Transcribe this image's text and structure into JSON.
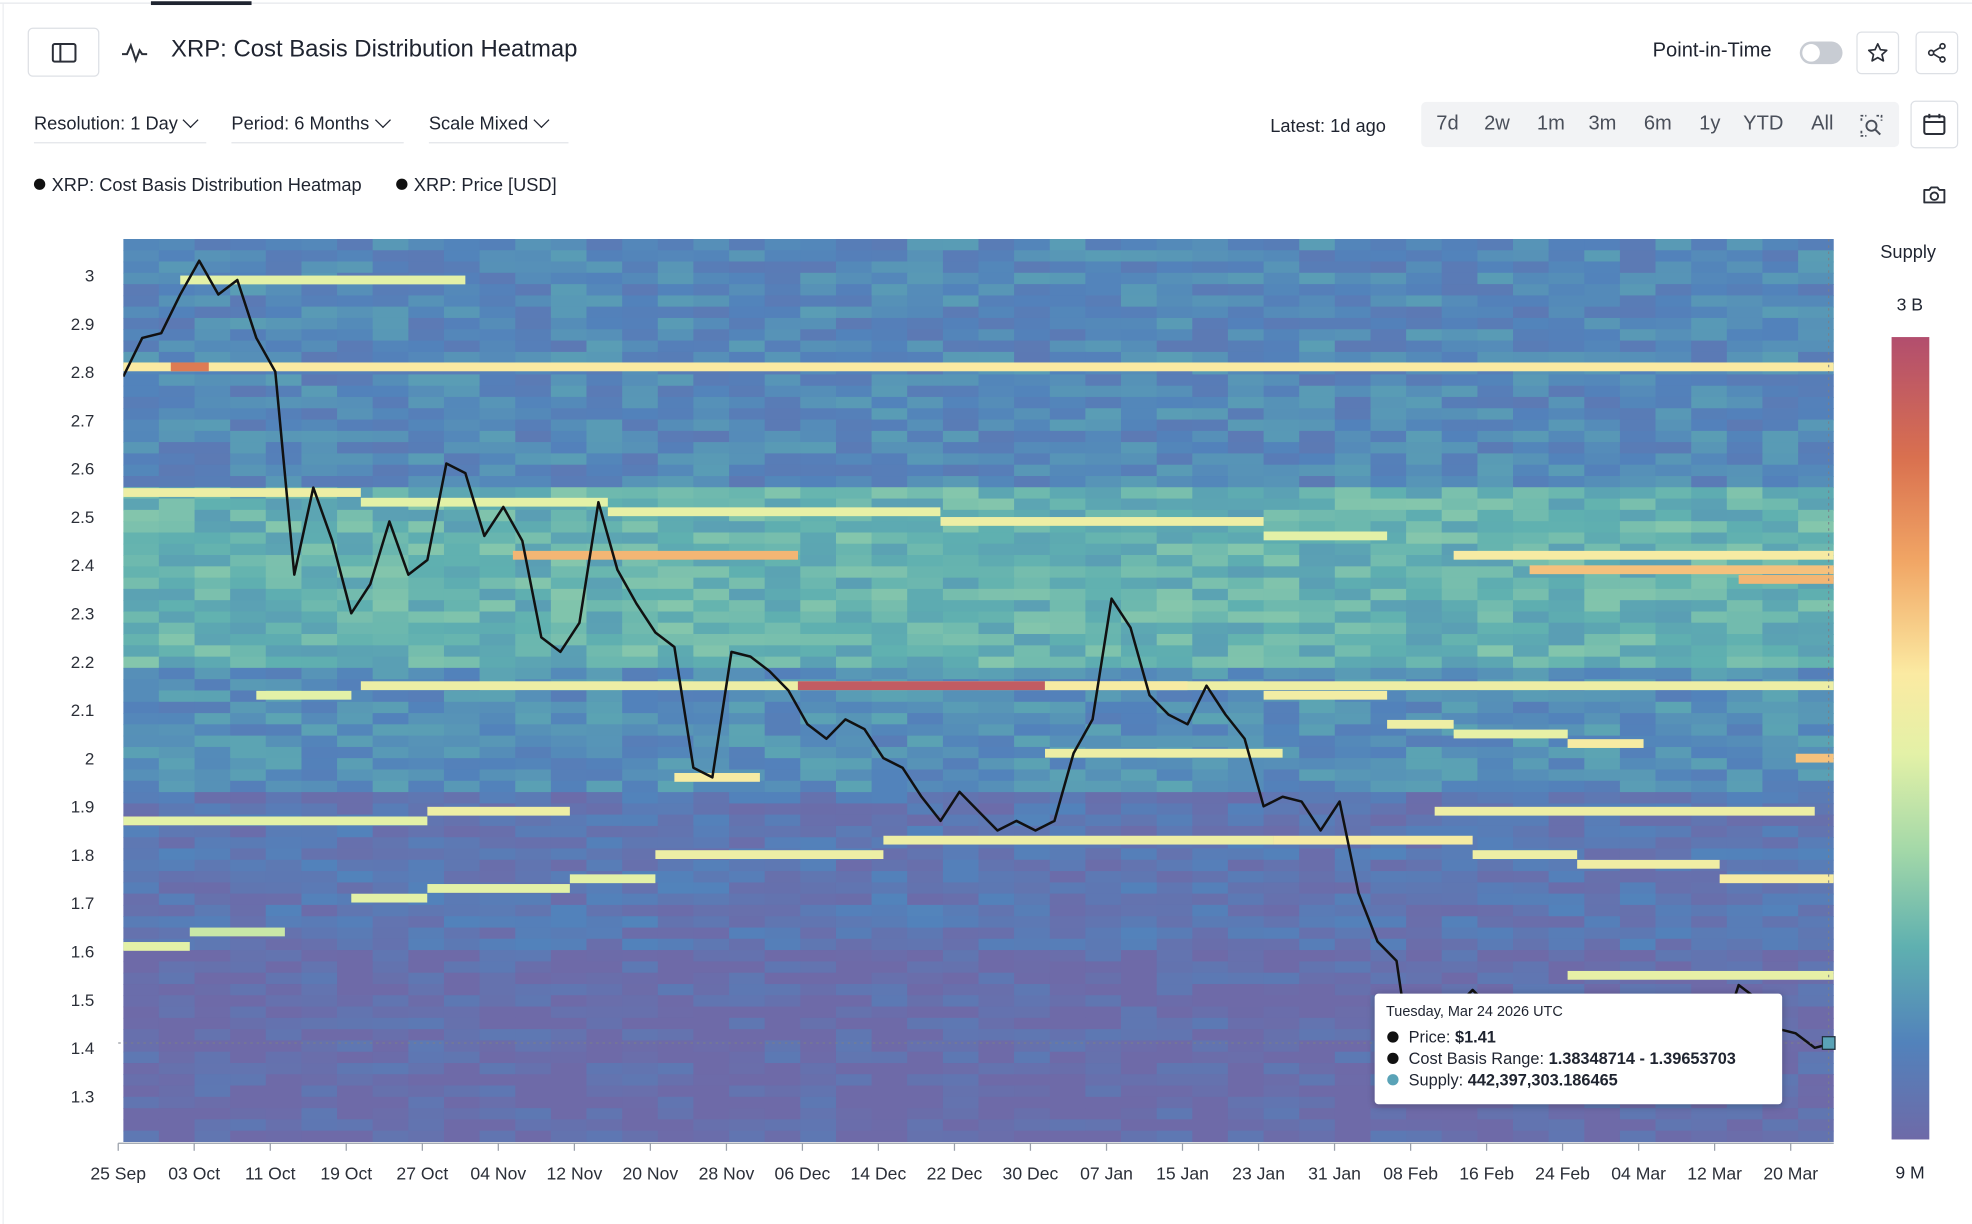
{
  "header": {
    "title": "XRP: Cost Basis Distribution Heatmap",
    "point_in_time_label": "Point-in-Time",
    "point_in_time_on": false
  },
  "controls": {
    "resolution": "Resolution: 1 Day",
    "period": "Period: 6 Months",
    "scale": "Scale Mixed",
    "latest": "Latest: 1d ago",
    "ranges": [
      "7d",
      "2w",
      "1m",
      "3m",
      "6m",
      "1y",
      "YTD",
      "All"
    ]
  },
  "icons": {
    "sidebar": "sidebar-toggle-icon",
    "metric": "pulse-icon",
    "favorite": "star-icon",
    "share": "share-icon",
    "zoom": "zoom-select-icon",
    "calendar": "calendar-icon",
    "screenshot": "camera-icon"
  },
  "legend": [
    "XRP: Cost Basis Distribution Heatmap",
    "XRP: Price [USD]"
  ],
  "supply_scale": {
    "title": "Supply",
    "max_label": "3 B",
    "min_label": "9 M"
  },
  "tooltip": {
    "date": "Tuesday, Mar 24 2026 UTC",
    "price_label": "Price:",
    "price_value": "$1.41",
    "range_label": "Cost Basis Range:",
    "range_value": "1.38348714 - 1.39653703",
    "supply_label": "Supply:",
    "supply_value": "442,397,303.186465",
    "price_color": "#111111",
    "range_color": "#111111",
    "supply_color": "#5aa3b7"
  },
  "chart_data": {
    "type": "heatmap",
    "title": "XRP: Cost Basis Distribution Heatmap",
    "y_ticks": [
      "3",
      "2.9",
      "2.8",
      "2.7",
      "2.6",
      "2.5",
      "2.4",
      "2.3",
      "2.2",
      "2.1",
      "2",
      "1.9",
      "1.8",
      "1.7",
      "1.6",
      "1.5",
      "1.4",
      "1.3"
    ],
    "ylim": [
      1.205,
      3.075
    ],
    "x_ticks": [
      "25 Sep",
      "03 Oct",
      "11 Oct",
      "19 Oct",
      "27 Oct",
      "04 Nov",
      "12 Nov",
      "20 Nov",
      "28 Nov",
      "06 Dec",
      "14 Dec",
      "22 Dec",
      "30 Dec",
      "07 Jan",
      "15 Jan",
      "23 Jan",
      "31 Jan",
      "08 Feb",
      "16 Feb",
      "24 Feb",
      "04 Mar",
      "12 Mar",
      "20 Mar"
    ],
    "x_start": "2025-09-25",
    "x_end": "2026-03-24",
    "grid": false,
    "colorscale": {
      "min_supply": "9 M",
      "max_supply": "3 B",
      "colors": [
        "#6e6aa8",
        "#5282bb",
        "#5fb0b0",
        "#a3d8a8",
        "#e3f1a7",
        "#fbeaa2",
        "#f1a665",
        "#d9704f",
        "#b24e6e"
      ]
    },
    "bands": [
      {
        "price": 2.81,
        "start": "2025-09-25",
        "end": "2026-03-24",
        "level": 0.62
      },
      {
        "price": 2.81,
        "start": "2025-09-30",
        "end": "2025-10-04",
        "level": 0.85
      },
      {
        "price": 2.99,
        "start": "2025-10-01",
        "end": "2025-10-31",
        "level": 0.5
      },
      {
        "price": 2.55,
        "start": "2025-09-25",
        "end": "2025-10-20",
        "level": 0.55
      },
      {
        "price": 2.53,
        "start": "2025-10-20",
        "end": "2025-11-15",
        "level": 0.5
      },
      {
        "price": 2.51,
        "start": "2025-11-15",
        "end": "2025-12-20",
        "level": 0.52
      },
      {
        "price": 2.49,
        "start": "2025-12-20",
        "end": "2026-01-23",
        "level": 0.55
      },
      {
        "price": 2.46,
        "start": "2026-01-23",
        "end": "2026-02-05",
        "level": 0.5
      },
      {
        "price": 2.42,
        "start": "2025-11-05",
        "end": "2025-12-05",
        "level": 0.72
      },
      {
        "price": 2.42,
        "start": "2026-02-12",
        "end": "2026-03-24",
        "level": 0.6
      },
      {
        "price": 2.39,
        "start": "2026-02-20",
        "end": "2026-03-24",
        "level": 0.7
      },
      {
        "price": 2.37,
        "start": "2026-03-14",
        "end": "2026-03-24",
        "level": 0.72
      },
      {
        "price": 2.15,
        "start": "2025-10-20",
        "end": "2026-03-24",
        "level": 0.55
      },
      {
        "price": 2.15,
        "start": "2025-12-05",
        "end": "2025-12-31",
        "level": 0.95
      },
      {
        "price": 2.15,
        "start": "2025-12-31",
        "end": "2026-01-15",
        "level": 0.6
      },
      {
        "price": 2.13,
        "start": "2026-01-23",
        "end": "2026-02-05",
        "level": 0.58
      },
      {
        "price": 2.13,
        "start": "2025-10-09",
        "end": "2025-10-19",
        "level": 0.5
      },
      {
        "price": 2.07,
        "start": "2026-02-05",
        "end": "2026-02-12",
        "level": 0.55
      },
      {
        "price": 2.05,
        "start": "2026-02-12",
        "end": "2026-02-24",
        "level": 0.52
      },
      {
        "price": 2.03,
        "start": "2026-02-24",
        "end": "2026-03-04",
        "level": 0.6
      },
      {
        "price": 2.01,
        "start": "2025-12-31",
        "end": "2026-01-25",
        "level": 0.55
      },
      {
        "price": 2.0,
        "start": "2026-03-20",
        "end": "2026-03-24",
        "level": 0.7
      },
      {
        "price": 1.96,
        "start": "2025-11-22",
        "end": "2025-12-01",
        "level": 0.6
      },
      {
        "price": 1.89,
        "start": "2025-10-27",
        "end": "2025-11-11",
        "level": 0.55
      },
      {
        "price": 1.89,
        "start": "2026-02-10",
        "end": "2026-03-22",
        "level": 0.55
      },
      {
        "price": 1.87,
        "start": "2025-09-25",
        "end": "2025-10-27",
        "level": 0.5
      },
      {
        "price": 1.83,
        "start": "2025-12-14",
        "end": "2026-01-24",
        "level": 0.55
      },
      {
        "price": 1.83,
        "start": "2026-01-24",
        "end": "2026-02-14",
        "level": 0.6
      },
      {
        "price": 1.8,
        "start": "2025-11-20",
        "end": "2025-12-14",
        "level": 0.55
      },
      {
        "price": 1.8,
        "start": "2026-02-14",
        "end": "2026-02-25",
        "level": 0.55
      },
      {
        "price": 1.78,
        "start": "2026-02-25",
        "end": "2026-03-12",
        "level": 0.57
      },
      {
        "price": 1.75,
        "start": "2026-03-12",
        "end": "2026-03-24",
        "level": 0.6
      },
      {
        "price": 1.71,
        "start": "2025-10-19",
        "end": "2025-10-27",
        "level": 0.5
      },
      {
        "price": 1.73,
        "start": "2025-10-27",
        "end": "2025-11-11",
        "level": 0.5
      },
      {
        "price": 1.75,
        "start": "2025-11-11",
        "end": "2025-11-20",
        "level": 0.5
      },
      {
        "price": 1.61,
        "start": "2025-09-25",
        "end": "2025-10-02",
        "level": 0.5
      },
      {
        "price": 1.64,
        "start": "2025-10-02",
        "end": "2025-10-12",
        "level": 0.45
      },
      {
        "price": 1.55,
        "start": "2026-02-24",
        "end": "2026-03-24",
        "level": 0.52
      }
    ],
    "series": [
      {
        "name": "XRP: Price [USD]",
        "x": [
          "2025-09-25",
          "2025-09-27",
          "2025-09-29",
          "2025-10-01",
          "2025-10-03",
          "2025-10-05",
          "2025-10-07",
          "2025-10-09",
          "2025-10-11",
          "2025-10-13",
          "2025-10-15",
          "2025-10-17",
          "2025-10-19",
          "2025-10-21",
          "2025-10-23",
          "2025-10-25",
          "2025-10-27",
          "2025-10-29",
          "2025-10-31",
          "2025-11-02",
          "2025-11-04",
          "2025-11-06",
          "2025-11-08",
          "2025-11-10",
          "2025-11-12",
          "2025-11-14",
          "2025-11-16",
          "2025-11-18",
          "2025-11-20",
          "2025-11-22",
          "2025-11-24",
          "2025-11-26",
          "2025-11-28",
          "2025-11-30",
          "2025-12-02",
          "2025-12-04",
          "2025-12-06",
          "2025-12-08",
          "2025-12-10",
          "2025-12-12",
          "2025-12-14",
          "2025-12-16",
          "2025-12-18",
          "2025-12-20",
          "2025-12-22",
          "2025-12-24",
          "2025-12-26",
          "2025-12-28",
          "2025-12-30",
          "2026-01-01",
          "2026-01-03",
          "2026-01-05",
          "2026-01-07",
          "2026-01-09",
          "2026-01-11",
          "2026-01-13",
          "2026-01-15",
          "2026-01-17",
          "2026-01-19",
          "2026-01-21",
          "2026-01-23",
          "2026-01-25",
          "2026-01-27",
          "2026-01-29",
          "2026-01-31",
          "2026-02-02",
          "2026-02-04",
          "2026-02-06",
          "2026-02-08",
          "2026-02-10",
          "2026-02-12",
          "2026-02-14",
          "2026-02-16",
          "2026-02-18",
          "2026-02-20",
          "2026-02-22",
          "2026-02-24",
          "2026-02-26",
          "2026-02-28",
          "2026-03-02",
          "2026-03-04",
          "2026-03-06",
          "2026-03-08",
          "2026-03-10",
          "2026-03-12",
          "2026-03-14",
          "2026-03-16",
          "2026-03-18",
          "2026-03-20",
          "2026-03-22",
          "2026-03-24"
        ],
        "y": [
          2.79,
          2.87,
          2.88,
          2.96,
          3.03,
          2.96,
          2.99,
          2.87,
          2.8,
          2.38,
          2.56,
          2.45,
          2.3,
          2.36,
          2.49,
          2.38,
          2.41,
          2.61,
          2.59,
          2.46,
          2.52,
          2.45,
          2.25,
          2.22,
          2.28,
          2.53,
          2.39,
          2.32,
          2.26,
          2.23,
          1.98,
          1.96,
          2.22,
          2.21,
          2.18,
          2.14,
          2.07,
          2.04,
          2.08,
          2.06,
          2.0,
          1.98,
          1.92,
          1.87,
          1.93,
          1.89,
          1.85,
          1.87,
          1.85,
          1.87,
          2.01,
          2.08,
          2.33,
          2.27,
          2.13,
          2.09,
          2.07,
          2.15,
          2.09,
          2.04,
          1.9,
          1.92,
          1.91,
          1.85,
          1.91,
          1.72,
          1.62,
          1.58,
          1.31,
          1.45,
          1.48,
          1.52,
          1.48,
          1.43,
          1.45,
          1.44,
          1.37,
          1.39,
          1.36,
          1.41,
          1.38,
          1.37,
          1.35,
          1.38,
          1.41,
          1.53,
          1.5,
          1.44,
          1.43,
          1.4,
          1.41
        ]
      }
    ]
  }
}
